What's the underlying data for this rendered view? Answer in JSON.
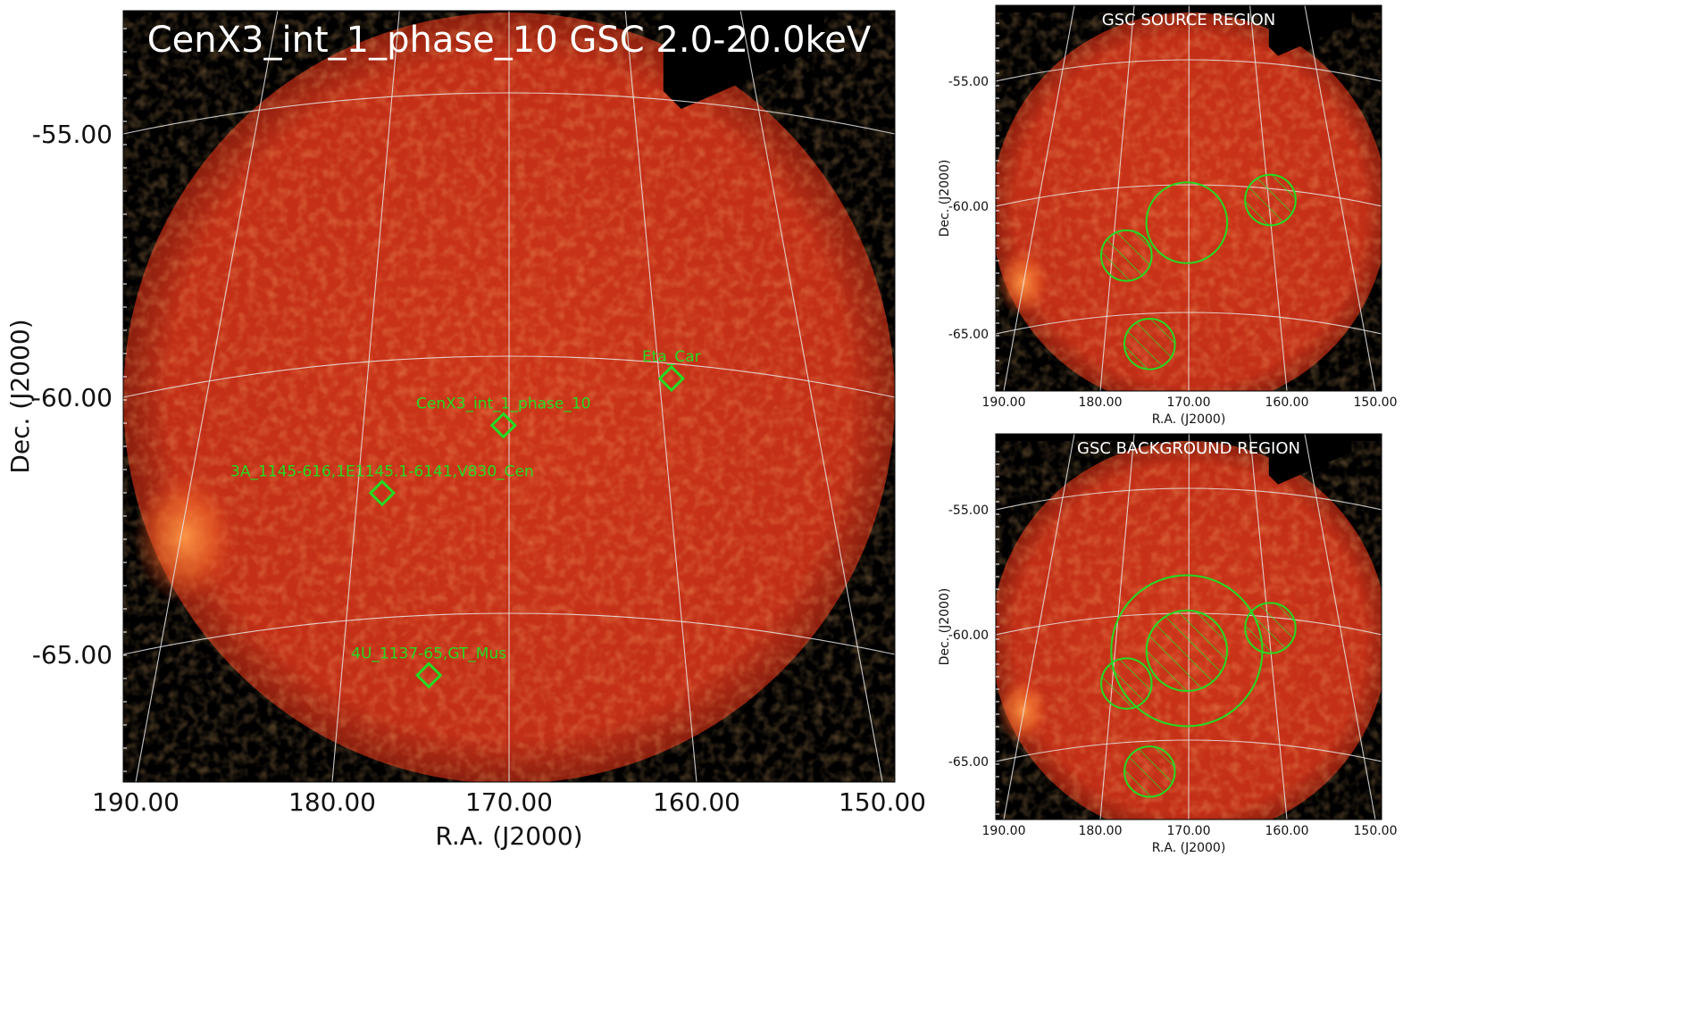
{
  "colors": {
    "frame_bg": "#000000",
    "disk_center": "#c8331a",
    "disk_edge": "#b02a14",
    "hot_spot": "#ff8c3a",
    "grid": "#e8e8e8",
    "region": "#22dd22",
    "title_text": "#ffffff"
  },
  "chart_data": [
    {
      "type": "heatmap",
      "title": "CenX3_int_1_phase_10 GSC 2.0-20.0keV",
      "xlabel": "R.A. (J2000)",
      "ylabel": "Dec. (J2000)",
      "xlim": [
        190.0,
        150.0
      ],
      "ylim": [
        -67.5,
        -51.5
      ],
      "x_ticks": [
        "190.00",
        "180.00",
        "170.00",
        "160.00",
        "150.00"
      ],
      "y_ticks": [
        "-55.00",
        "-60.00",
        "-65.00"
      ],
      "grid": true,
      "sources": [
        {
          "label": "Eta_Car",
          "ra": 161.3,
          "dec": -59.7
        },
        {
          "label": "CenX3_int_1_phase_10",
          "ra": 170.3,
          "dec": -60.6
        },
        {
          "label": "3A_1145-616,1E1145.1-6141,V830_Cen",
          "ra": 176.8,
          "dec": -61.9
        },
        {
          "label": "4U_1137-65,GT_Mus",
          "ra": 174.3,
          "dec": -65.4
        }
      ]
    },
    {
      "type": "heatmap",
      "title": "GSC SOURCE REGION",
      "xlabel": "R.A. (J2000)",
      "ylabel": "Dec. (J2000)",
      "x_ticks": [
        "190.00",
        "180.00",
        "170.00",
        "160.00",
        "150.00"
      ],
      "y_ticks": [
        "-55.00",
        "-60.00",
        "-65.00"
      ],
      "grid": true,
      "regions": [
        {
          "kind": "source",
          "ra": 170.3,
          "dec": -60.6,
          "radius_deg": 1.6
        },
        {
          "kind": "excluded",
          "ra": 161.3,
          "dec": -59.7,
          "radius_deg": 1.0
        },
        {
          "kind": "excluded",
          "ra": 176.8,
          "dec": -61.9,
          "radius_deg": 1.0
        },
        {
          "kind": "excluded",
          "ra": 174.3,
          "dec": -65.4,
          "radius_deg": 1.0
        }
      ]
    },
    {
      "type": "heatmap",
      "title": "GSC BACKGROUND REGION",
      "xlabel": "R.A. (J2000)",
      "ylabel": "Dec. (J2000)",
      "x_ticks": [
        "190.00",
        "180.00",
        "170.00",
        "160.00",
        "150.00"
      ],
      "y_ticks": [
        "-55.00",
        "-60.00",
        "-65.00"
      ],
      "grid": true,
      "regions": [
        {
          "kind": "background",
          "ra": 170.3,
          "dec": -60.6,
          "radius_deg": 3.0
        },
        {
          "kind": "excluded",
          "ra": 170.3,
          "dec": -60.6,
          "radius_deg": 1.6
        },
        {
          "kind": "excluded",
          "ra": 161.3,
          "dec": -59.7,
          "radius_deg": 1.0
        },
        {
          "kind": "excluded",
          "ra": 176.8,
          "dec": -61.9,
          "radius_deg": 1.0
        },
        {
          "kind": "excluded",
          "ra": 174.3,
          "dec": -65.4,
          "radius_deg": 1.0
        }
      ]
    }
  ]
}
